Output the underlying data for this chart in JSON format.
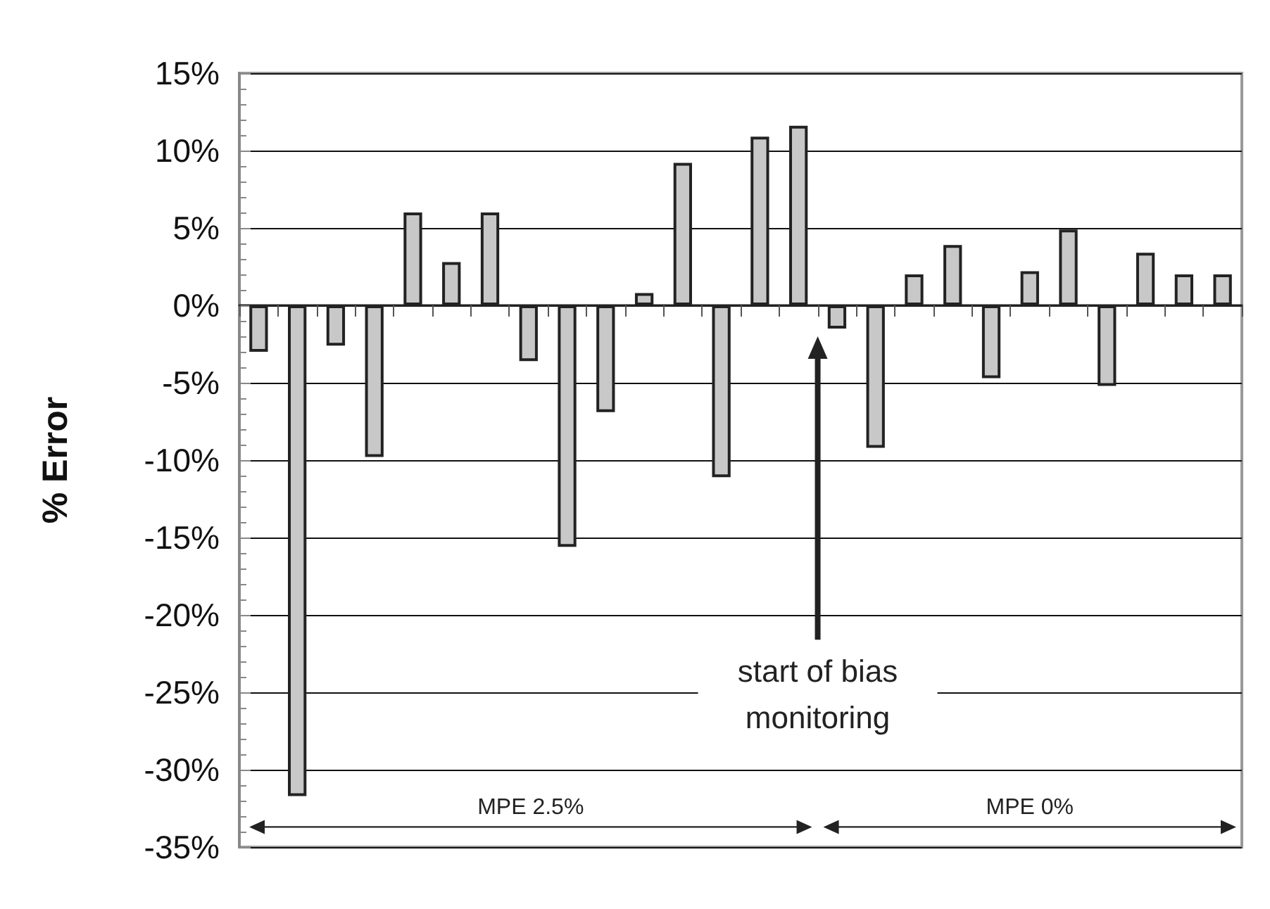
{
  "chart_data": {
    "type": "bar",
    "ylabel": "% Error",
    "categories": [
      null,
      null,
      null,
      null,
      null,
      null,
      null,
      null,
      null,
      null,
      null,
      null,
      null,
      null,
      null,
      null,
      null,
      null,
      null,
      null,
      null,
      null,
      null,
      null,
      null,
      null
    ],
    "values": [
      -3.0,
      -31.7,
      -2.6,
      -9.8,
      6.0,
      2.8,
      6.0,
      -3.6,
      -15.6,
      -6.9,
      0.8,
      9.2,
      -11.1,
      10.9,
      11.6,
      -1.5,
      -9.2,
      2.0,
      3.9,
      -4.7,
      2.2,
      4.9,
      -5.2,
      3.4,
      2.0,
      2.0
    ],
    "color": "#c8c8c8",
    "ylim": [
      -35,
      15
    ],
    "yticks": [
      {
        "value": -35,
        "label": "-35%"
      },
      {
        "value": -30,
        "label": "-30%"
      },
      {
        "value": -25,
        "label": "-25%"
      },
      {
        "value": -20,
        "label": "-20%"
      },
      {
        "value": -15,
        "label": "-15%"
      },
      {
        "value": -10,
        "label": "-10%"
      },
      {
        "value": -5,
        "label": "-5%"
      },
      {
        "value": 0,
        "label": "0%"
      },
      {
        "value": 5,
        "label": "5%"
      },
      {
        "value": 10,
        "label": "10%"
      },
      {
        "value": 15,
        "label": "15%"
      }
    ],
    "grid": "y",
    "annotations": [
      "start of bias monitoring",
      "MPE 2.5%",
      "MPE 0%"
    ]
  }
}
